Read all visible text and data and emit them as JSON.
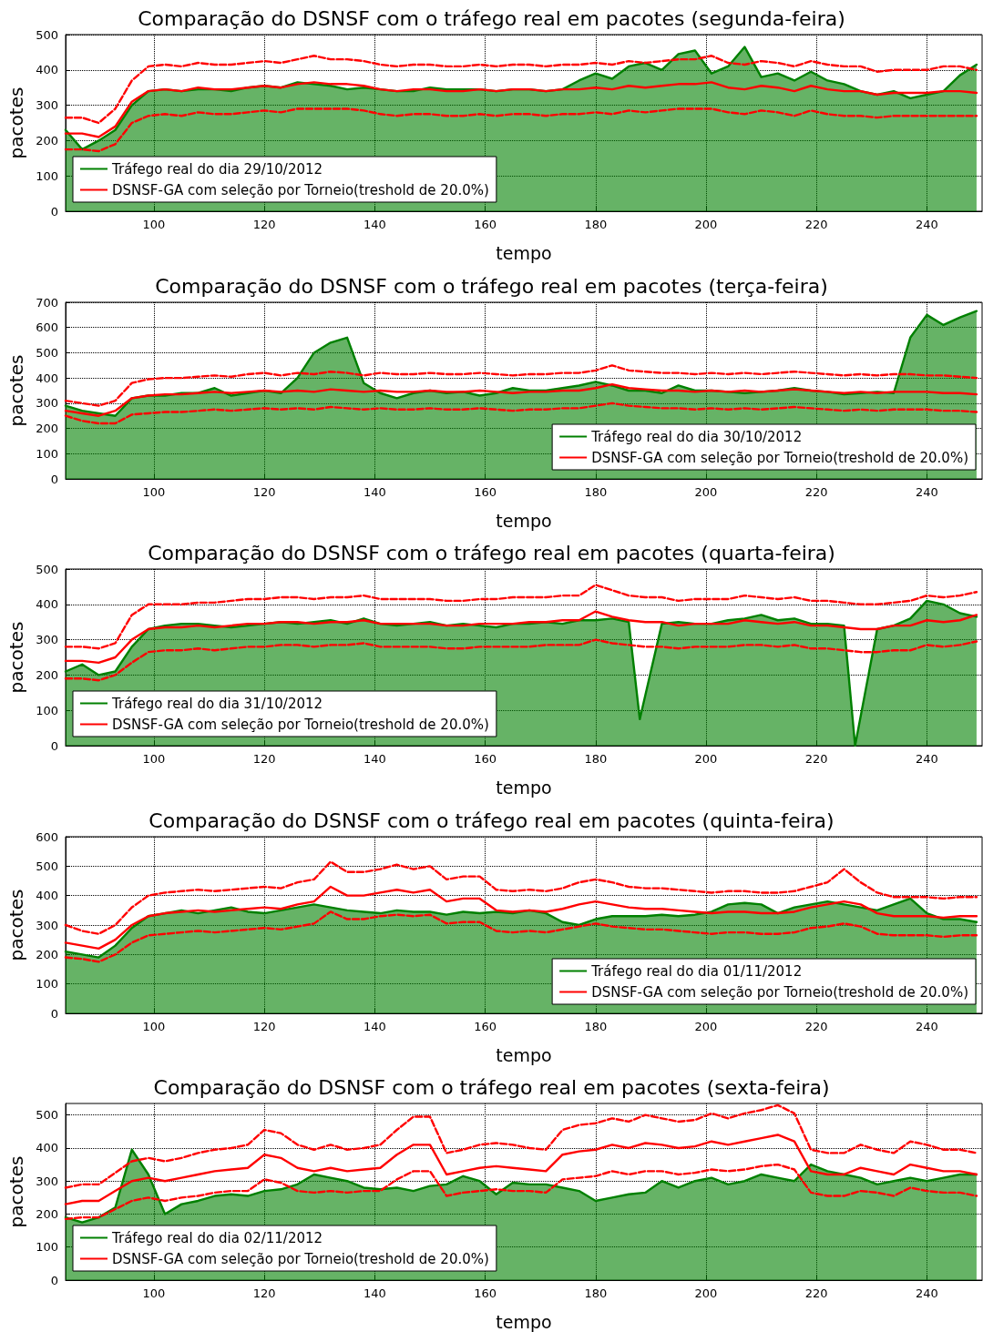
{
  "chart_data": [
    {
      "type": "area",
      "title": "Comparação do DSNSF com o tráfego real em pacotes (segunda-feira)",
      "xlabel": "tempo",
      "ylabel": "pacotes",
      "xlim": [
        84,
        250
      ],
      "xticks": [
        100,
        120,
        140,
        160,
        180,
        200,
        220,
        240
      ],
      "ylim": [
        0,
        500
      ],
      "yticks": [
        0,
        100,
        200,
        300,
        400,
        500
      ],
      "grid": true,
      "legend": "bottom left",
      "marker": "none",
      "x": [
        84,
        87,
        90,
        93,
        96,
        99,
        102,
        105,
        108,
        111,
        114,
        117,
        120,
        123,
        126,
        129,
        132,
        135,
        138,
        141,
        144,
        147,
        150,
        153,
        156,
        159,
        162,
        165,
        168,
        171,
        174,
        177,
        180,
        183,
        186,
        189,
        192,
        195,
        198,
        201,
        204,
        207,
        210,
        213,
        216,
        219,
        222,
        225,
        228,
        231,
        234,
        237,
        240,
        243,
        246,
        249
      ],
      "series": [
        {
          "name": "Tráfego real do dia 29/10/2012",
          "type": "area",
          "color": "#008000",
          "values": [
            230,
            175,
            200,
            230,
            300,
            340,
            345,
            340,
            345,
            345,
            340,
            350,
            355,
            350,
            365,
            360,
            355,
            345,
            350,
            345,
            340,
            340,
            350,
            345,
            345,
            345,
            340,
            345,
            345,
            340,
            345,
            370,
            390,
            375,
            410,
            420,
            400,
            445,
            455,
            390,
            410,
            465,
            380,
            390,
            370,
            395,
            370,
            360,
            340,
            330,
            340,
            320,
            330,
            340,
            385,
            415
          ]
        },
        {
          "name": "DSNSF-GA com seleção por Torneio(treshold de 20.0%)",
          "type": "line",
          "color": "#ff0000",
          "values": [
            220,
            220,
            210,
            240,
            310,
            340,
            345,
            340,
            350,
            345,
            345,
            350,
            355,
            350,
            360,
            365,
            360,
            360,
            355,
            345,
            340,
            345,
            345,
            340,
            340,
            345,
            340,
            345,
            345,
            340,
            345,
            345,
            350,
            345,
            355,
            350,
            355,
            360,
            360,
            365,
            350,
            345,
            355,
            350,
            340,
            355,
            345,
            340,
            340,
            330,
            335,
            335,
            335,
            340,
            340,
            335
          ]
        },
        {
          "type": "line",
          "color": "#ff0000",
          "line_style": "dashed",
          "values": [
            265,
            265,
            250,
            290,
            370,
            410,
            415,
            410,
            420,
            415,
            415,
            420,
            425,
            420,
            430,
            440,
            430,
            430,
            425,
            415,
            410,
            415,
            415,
            410,
            410,
            415,
            410,
            415,
            415,
            410,
            415,
            415,
            420,
            415,
            425,
            420,
            425,
            430,
            430,
            440,
            420,
            415,
            425,
            420,
            410,
            425,
            415,
            410,
            410,
            395,
            400,
            400,
            400,
            410,
            410,
            400
          ]
        },
        {
          "type": "line",
          "color": "#ff0000",
          "line_style": "dashed",
          "values": [
            175,
            175,
            170,
            190,
            250,
            270,
            275,
            270,
            280,
            275,
            275,
            280,
            285,
            280,
            290,
            290,
            290,
            290,
            285,
            275,
            270,
            275,
            275,
            270,
            270,
            275,
            270,
            275,
            275,
            270,
            275,
            275,
            280,
            275,
            285,
            280,
            285,
            290,
            290,
            290,
            280,
            275,
            285,
            280,
            270,
            285,
            275,
            270,
            270,
            265,
            270,
            270,
            270,
            270,
            270,
            270
          ]
        }
      ]
    },
    {
      "type": "area",
      "title": "Comparação do DSNSF com o tráfego real em pacotes (terça-feira)",
      "xlabel": "tempo",
      "ylabel": "pacotes",
      "xlim": [
        84,
        250
      ],
      "xticks": [
        100,
        120,
        140,
        160,
        180,
        200,
        220,
        240
      ],
      "ylim": [
        0,
        700
      ],
      "yticks": [
        0,
        100,
        200,
        300,
        400,
        500,
        600,
        700
      ],
      "grid": true,
      "legend": "bottom right",
      "marker": "none",
      "x": [
        84,
        87,
        90,
        93,
        96,
        99,
        102,
        105,
        108,
        111,
        114,
        117,
        120,
        123,
        126,
        129,
        132,
        135,
        138,
        141,
        144,
        147,
        150,
        153,
        156,
        159,
        162,
        165,
        168,
        171,
        174,
        177,
        180,
        183,
        186,
        189,
        192,
        195,
        198,
        201,
        204,
        207,
        210,
        213,
        216,
        219,
        222,
        225,
        228,
        231,
        234,
        237,
        240,
        243,
        246,
        249
      ],
      "series": [
        {
          "name": "Tráfego real do dia 30/10/2012",
          "type": "area",
          "color": "#008000",
          "values": [
            290,
            270,
            260,
            250,
            320,
            330,
            330,
            340,
            340,
            360,
            330,
            340,
            350,
            340,
            400,
            500,
            540,
            560,
            380,
            340,
            320,
            340,
            350,
            340,
            345,
            330,
            340,
            360,
            350,
            350,
            360,
            370,
            385,
            370,
            350,
            350,
            340,
            370,
            350,
            350,
            345,
            340,
            345,
            350,
            360,
            350,
            345,
            335,
            340,
            345,
            340,
            560,
            650,
            610,
            640,
            665
          ]
        },
        {
          "name": "DSNSF-GA com seleção por Torneio(treshold de 20.0%)",
          "type": "line",
          "color": "#ff0000",
          "values": [
            270,
            260,
            250,
            270,
            320,
            330,
            335,
            335,
            340,
            345,
            340,
            345,
            350,
            345,
            350,
            345,
            355,
            350,
            345,
            350,
            345,
            345,
            350,
            345,
            345,
            350,
            345,
            340,
            345,
            345,
            350,
            350,
            360,
            375,
            360,
            355,
            350,
            350,
            345,
            350,
            345,
            350,
            345,
            350,
            355,
            350,
            345,
            340,
            345,
            340,
            345,
            345,
            345,
            340,
            340,
            335
          ]
        },
        {
          "type": "line",
          "color": "#ff0000",
          "line_style": "dashed",
          "values": [
            310,
            300,
            290,
            310,
            380,
            395,
            400,
            400,
            405,
            410,
            405,
            415,
            420,
            410,
            420,
            415,
            425,
            420,
            410,
            420,
            415,
            415,
            420,
            415,
            415,
            420,
            415,
            410,
            415,
            415,
            420,
            420,
            430,
            450,
            430,
            425,
            420,
            420,
            415,
            420,
            415,
            420,
            415,
            420,
            425,
            420,
            415,
            410,
            415,
            410,
            415,
            415,
            410,
            410,
            405,
            400
          ]
        },
        {
          "type": "line",
          "color": "#ff0000",
          "line_style": "dashed",
          "values": [
            250,
            230,
            220,
            220,
            255,
            260,
            265,
            265,
            270,
            275,
            270,
            275,
            280,
            275,
            280,
            275,
            285,
            280,
            275,
            280,
            275,
            275,
            280,
            275,
            275,
            280,
            275,
            270,
            275,
            275,
            280,
            280,
            290,
            300,
            290,
            285,
            280,
            280,
            275,
            280,
            275,
            280,
            275,
            280,
            285,
            280,
            275,
            270,
            275,
            270,
            275,
            275,
            275,
            270,
            270,
            265
          ]
        }
      ]
    },
    {
      "type": "area",
      "title": "Comparação do DSNSF com o tráfego real em pacotes (quarta-feira)",
      "xlabel": "tempo",
      "ylabel": "pacotes",
      "xlim": [
        84,
        250
      ],
      "xticks": [
        100,
        120,
        140,
        160,
        180,
        200,
        220,
        240
      ],
      "ylim": [
        0,
        500
      ],
      "yticks": [
        0,
        100,
        200,
        300,
        400,
        500
      ],
      "grid": true,
      "legend": "bottom left",
      "marker": "none",
      "x": [
        84,
        87,
        90,
        93,
        96,
        99,
        102,
        105,
        108,
        111,
        114,
        117,
        120,
        123,
        126,
        129,
        132,
        135,
        138,
        141,
        144,
        147,
        150,
        153,
        156,
        159,
        162,
        165,
        168,
        171,
        174,
        177,
        180,
        183,
        186,
        189,
        192,
        195,
        198,
        201,
        204,
        207,
        210,
        213,
        216,
        219,
        222,
        225,
        228,
        231,
        234,
        237,
        240,
        243,
        246,
        249
      ],
      "series": [
        {
          "name": "Tráfego real do dia 31/10/2012",
          "type": "area",
          "color": "#008000",
          "x": [
            84,
            87,
            90,
            93,
            96,
            99,
            102,
            105,
            108,
            111,
            114,
            117,
            120,
            123,
            126,
            129,
            132,
            135,
            138,
            141,
            144,
            147,
            150,
            153,
            156,
            159,
            162,
            165,
            168,
            171,
            174,
            177,
            180,
            183,
            186,
            188,
            192,
            195,
            198,
            201,
            204,
            207,
            210,
            213,
            216,
            219,
            222,
            225,
            227,
            231,
            234,
            237,
            240,
            243,
            246,
            249
          ],
          "values": [
            210,
            230,
            200,
            210,
            280,
            330,
            340,
            345,
            345,
            340,
            335,
            340,
            345,
            350,
            345,
            350,
            355,
            345,
            360,
            345,
            340,
            345,
            350,
            340,
            345,
            340,
            335,
            345,
            345,
            350,
            345,
            355,
            355,
            360,
            350,
            75,
            345,
            350,
            345,
            345,
            355,
            360,
            370,
            355,
            360,
            345,
            345,
            340,
            0,
            330,
            340,
            360,
            410,
            400,
            375,
            365
          ]
        },
        {
          "name": "DSNSF-GA com seleção por Torneio(treshold de 20.0%)",
          "type": "line",
          "color": "#ff0000",
          "values": [
            240,
            240,
            235,
            250,
            300,
            330,
            335,
            335,
            340,
            335,
            340,
            345,
            345,
            350,
            350,
            345,
            350,
            350,
            355,
            345,
            345,
            345,
            345,
            340,
            340,
            345,
            345,
            345,
            350,
            350,
            355,
            355,
            380,
            365,
            355,
            350,
            350,
            340,
            345,
            345,
            345,
            355,
            350,
            345,
            350,
            340,
            340,
            335,
            330,
            330,
            340,
            340,
            355,
            350,
            355,
            370
          ]
        },
        {
          "type": "line",
          "color": "#ff0000",
          "line_style": "dashed",
          "values": [
            280,
            280,
            275,
            290,
            370,
            400,
            400,
            400,
            405,
            405,
            410,
            415,
            415,
            420,
            420,
            415,
            420,
            420,
            425,
            415,
            415,
            415,
            415,
            410,
            410,
            415,
            415,
            420,
            420,
            420,
            425,
            425,
            455,
            440,
            425,
            420,
            420,
            410,
            415,
            415,
            415,
            425,
            420,
            415,
            420,
            410,
            410,
            405,
            400,
            400,
            405,
            410,
            425,
            420,
            425,
            435
          ]
        },
        {
          "type": "line",
          "color": "#ff0000",
          "line_style": "dashed",
          "values": [
            190,
            190,
            185,
            200,
            235,
            265,
            270,
            270,
            275,
            270,
            275,
            280,
            280,
            285,
            285,
            280,
            285,
            285,
            290,
            280,
            280,
            280,
            280,
            275,
            275,
            280,
            280,
            280,
            280,
            285,
            285,
            285,
            300,
            290,
            285,
            280,
            280,
            275,
            280,
            280,
            280,
            285,
            285,
            280,
            285,
            275,
            275,
            270,
            265,
            265,
            270,
            270,
            285,
            280,
            285,
            295
          ]
        }
      ]
    },
    {
      "type": "area",
      "title": "Comparação do DSNSF com o tráfego real em pacotes (quinta-feira)",
      "xlabel": "tempo",
      "ylabel": "pacotes",
      "xlim": [
        84,
        250
      ],
      "xticks": [
        100,
        120,
        140,
        160,
        180,
        200,
        220,
        240
      ],
      "ylim": [
        0,
        600
      ],
      "yticks": [
        0,
        100,
        200,
        300,
        400,
        500,
        600
      ],
      "grid": true,
      "legend": "bottom right",
      "marker": "none",
      "x": [
        84,
        87,
        90,
        93,
        96,
        99,
        102,
        105,
        108,
        111,
        114,
        117,
        120,
        123,
        126,
        129,
        132,
        135,
        138,
        141,
        144,
        147,
        150,
        153,
        156,
        159,
        162,
        165,
        168,
        171,
        174,
        177,
        180,
        183,
        186,
        189,
        192,
        195,
        198,
        201,
        204,
        207,
        210,
        213,
        216,
        219,
        222,
        225,
        228,
        231,
        234,
        237,
        240,
        243,
        246,
        249
      ],
      "series": [
        {
          "name": "Tráfego real do dia 01/11/2012",
          "type": "area",
          "color": "#008000",
          "values": [
            210,
            200,
            190,
            230,
            290,
            330,
            340,
            350,
            340,
            350,
            360,
            345,
            340,
            350,
            360,
            370,
            360,
            350,
            345,
            340,
            350,
            345,
            345,
            335,
            345,
            340,
            345,
            340,
            350,
            340,
            310,
            300,
            320,
            330,
            330,
            330,
            335,
            330,
            335,
            345,
            370,
            375,
            370,
            340,
            360,
            370,
            380,
            370,
            360,
            350,
            370,
            390,
            340,
            320,
            320,
            310
          ]
        },
        {
          "name": "DSNSF-GA com seleção por Torneio(treshold de 20.0%)",
          "type": "line",
          "color": "#ff0000",
          "values": [
            240,
            230,
            220,
            250,
            300,
            330,
            340,
            345,
            350,
            345,
            350,
            355,
            360,
            355,
            370,
            380,
            430,
            400,
            400,
            410,
            420,
            410,
            420,
            380,
            390,
            390,
            350,
            345,
            350,
            345,
            355,
            370,
            380,
            370,
            360,
            355,
            355,
            350,
            345,
            340,
            345,
            345,
            340,
            340,
            345,
            360,
            370,
            380,
            370,
            340,
            330,
            330,
            330,
            325,
            330,
            330
          ]
        },
        {
          "type": "line",
          "color": "#ff0000",
          "line_style": "dashed",
          "values": [
            300,
            280,
            270,
            300,
            360,
            400,
            410,
            415,
            420,
            415,
            420,
            425,
            430,
            425,
            445,
            455,
            515,
            480,
            480,
            490,
            505,
            490,
            500,
            455,
            465,
            465,
            420,
            415,
            420,
            415,
            425,
            445,
            455,
            445,
            430,
            425,
            425,
            420,
            415,
            410,
            415,
            415,
            410,
            410,
            415,
            430,
            445,
            490,
            445,
            410,
            395,
            395,
            395,
            390,
            395,
            395
          ]
        },
        {
          "type": "line",
          "color": "#ff0000",
          "line_style": "dashed",
          "values": [
            190,
            185,
            175,
            200,
            240,
            265,
            270,
            275,
            280,
            275,
            280,
            285,
            290,
            285,
            295,
            305,
            345,
            320,
            320,
            330,
            335,
            330,
            335,
            305,
            310,
            310,
            280,
            275,
            280,
            275,
            285,
            295,
            305,
            295,
            290,
            285,
            285,
            280,
            275,
            270,
            275,
            275,
            270,
            270,
            275,
            290,
            295,
            305,
            295,
            270,
            265,
            265,
            265,
            260,
            265,
            265
          ]
        }
      ]
    },
    {
      "type": "area",
      "title": "Comparação do DSNSF com o tráfego real em pacotes (sexta-feira)",
      "xlabel": "tempo",
      "ylabel": "pacotes",
      "xlim": [
        84,
        250
      ],
      "xticks": [
        100,
        120,
        140,
        160,
        180,
        200,
        220,
        240
      ],
      "ylim": [
        0,
        535
      ],
      "yticks": [
        0,
        100,
        200,
        300,
        400,
        500
      ],
      "grid": true,
      "legend": "bottom left",
      "marker": "none",
      "x": [
        84,
        87,
        90,
        93,
        96,
        99,
        102,
        105,
        108,
        111,
        114,
        117,
        120,
        123,
        126,
        129,
        132,
        135,
        138,
        141,
        144,
        147,
        150,
        153,
        156,
        159,
        162,
        165,
        168,
        171,
        174,
        177,
        180,
        183,
        186,
        189,
        192,
        195,
        198,
        201,
        204,
        207,
        210,
        213,
        216,
        219,
        222,
        225,
        228,
        231,
        234,
        237,
        240,
        243,
        246,
        249
      ],
      "series": [
        {
          "name": "Tráfego real do dia 02/11/2012",
          "type": "area",
          "color": "#008000",
          "values": [
            190,
            175,
            190,
            220,
            395,
            320,
            200,
            230,
            240,
            255,
            260,
            255,
            270,
            275,
            290,
            320,
            310,
            300,
            280,
            275,
            280,
            270,
            285,
            290,
            315,
            300,
            260,
            295,
            290,
            290,
            280,
            270,
            240,
            250,
            260,
            265,
            300,
            280,
            300,
            310,
            290,
            300,
            320,
            310,
            300,
            350,
            330,
            320,
            310,
            290,
            300,
            310,
            300,
            310,
            320,
            320
          ]
        },
        {
          "name": "DSNSF-GA com seleção por Torneio(treshold de 20.0%)",
          "type": "line",
          "color": "#ff0000",
          "values": [
            230,
            240,
            240,
            270,
            300,
            310,
            300,
            310,
            320,
            330,
            335,
            340,
            380,
            370,
            340,
            330,
            340,
            330,
            335,
            340,
            380,
            410,
            410,
            320,
            330,
            340,
            345,
            340,
            335,
            330,
            380,
            390,
            395,
            410,
            400,
            415,
            410,
            400,
            405,
            420,
            410,
            420,
            430,
            440,
            420,
            330,
            320,
            320,
            340,
            330,
            320,
            350,
            340,
            330,
            330,
            320
          ]
        },
        {
          "type": "line",
          "color": "#ff0000",
          "line_style": "dashed",
          "values": [
            280,
            290,
            290,
            325,
            360,
            370,
            360,
            370,
            385,
            395,
            400,
            410,
            455,
            445,
            410,
            395,
            410,
            395,
            400,
            410,
            455,
            495,
            495,
            385,
            395,
            410,
            415,
            410,
            400,
            395,
            455,
            470,
            475,
            490,
            480,
            500,
            490,
            480,
            485,
            505,
            490,
            505,
            515,
            530,
            505,
            395,
            385,
            385,
            410,
            395,
            385,
            420,
            410,
            395,
            395,
            385
          ]
        },
        {
          "type": "line",
          "color": "#ff0000",
          "line_style": "dashed",
          "values": [
            185,
            190,
            190,
            215,
            240,
            250,
            240,
            250,
            255,
            265,
            270,
            270,
            305,
            295,
            270,
            265,
            270,
            265,
            270,
            270,
            305,
            330,
            330,
            255,
            265,
            270,
            275,
            270,
            270,
            265,
            305,
            310,
            315,
            330,
            320,
            330,
            330,
            320,
            325,
            335,
            330,
            335,
            345,
            350,
            335,
            265,
            255,
            255,
            270,
            265,
            255,
            280,
            270,
            265,
            265,
            255
          ]
        }
      ]
    }
  ]
}
